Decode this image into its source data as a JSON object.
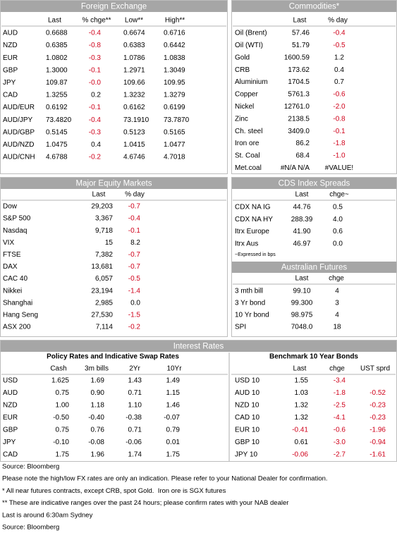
{
  "fx": {
    "title": "Foreign Exchange",
    "columns": [
      "Last",
      "% chge**",
      "Low**",
      "High**"
    ],
    "rows": [
      [
        "AUD",
        "0.6688",
        "-0.4",
        "0.6674",
        "0.6716"
      ],
      [
        "NZD",
        "0.6385",
        "-0.8",
        "0.6383",
        "0.6442"
      ],
      [
        "EUR",
        "1.0802",
        "-0.3",
        "1.0786",
        "1.0838"
      ],
      [
        "GBP",
        "1.3000",
        "-0.1",
        "1.2971",
        "1.3049"
      ],
      [
        "JPY",
        "109.87",
        "-0.0",
        "109.66",
        "109.95"
      ],
      [
        "CAD",
        "1.3255",
        "0.2",
        "1.3232",
        "1.3279"
      ],
      [
        "AUD/EUR",
        "0.6192",
        "-0.1",
        "0.6162",
        "0.6199"
      ],
      [
        "AUD/JPY",
        "73.4820",
        "-0.4",
        "73.1910",
        "73.7870"
      ],
      [
        "AUD/GBP",
        "0.5145",
        "-0.3",
        "0.5123",
        "0.5165"
      ],
      [
        "AUD/NZD",
        "1.0475",
        "0.4",
        "1.0415",
        "1.0477"
      ],
      [
        "AUD/CNH",
        "4.6788",
        "-0.2",
        "4.6746",
        "4.7018"
      ]
    ]
  },
  "commodities": {
    "title": "Commodities*",
    "columns": [
      "Last",
      "% day"
    ],
    "rows": [
      [
        "Oil (Brent)",
        "57.46",
        "-0.4"
      ],
      [
        "Oil (WTI)",
        "51.79",
        "-0.5"
      ],
      [
        "Gold",
        "1600.59",
        "1.2"
      ],
      [
        "CRB",
        "173.62",
        "0.4"
      ],
      [
        "Aluminium",
        "1704.5",
        "0.7"
      ],
      [
        "Copper",
        "5761.3",
        "-0.6"
      ],
      [
        "Nickel",
        "12761.0",
        "-2.0"
      ],
      [
        "Zinc",
        "2138.5",
        "-0.8"
      ],
      [
        "Ch. steel",
        "3409.0",
        "-0.1"
      ],
      [
        "Iron ore",
        "86.2",
        "-1.8"
      ],
      [
        "St. Coal",
        "68.4",
        "-1.0"
      ],
      [
        "Met.coal",
        "#N/A N/A",
        "#VALUE!"
      ]
    ]
  },
  "equity": {
    "title": "Major Equity Markets",
    "columns": [
      "Last",
      "% day"
    ],
    "rows": [
      [
        "Dow",
        "29,203",
        "-0.7"
      ],
      [
        "S&P 500",
        "3,367",
        "-0.4"
      ],
      [
        "Nasdaq",
        "9,718",
        "-0.1"
      ],
      [
        "VIX",
        "15",
        "8.2"
      ],
      [
        "FTSE",
        "7,382",
        "-0.7"
      ],
      [
        "DAX",
        "13,681",
        "-0.7"
      ],
      [
        "CAC 40",
        "6,057",
        "-0.5"
      ],
      [
        "Nikkei",
        "23,194",
        "-1.4"
      ],
      [
        "Shanghai",
        "2,985",
        "0.0"
      ],
      [
        "Hang Seng",
        "27,530",
        "-1.5"
      ],
      [
        "ASX 200",
        "7,114",
        "-0.2"
      ]
    ]
  },
  "cds": {
    "title": "CDS Index Spreads",
    "columns": [
      "Last",
      "chge~"
    ],
    "rows": [
      [
        "CDX NA IG",
        "44.76",
        "0.5"
      ],
      [
        "CDX NA HY",
        "288.39",
        "4.0"
      ],
      [
        "Itrx Europe",
        "41.90",
        "0.6"
      ],
      [
        "Itrx Aus",
        "46.97",
        "0.0"
      ]
    ],
    "note": "~Expressed in bps"
  },
  "futures": {
    "title": "Australian Futures",
    "columns": [
      "Last",
      "chge"
    ],
    "rows": [
      [
        "3 mth bill",
        "99.10",
        "4"
      ],
      [
        "3 Yr bond",
        "99.300",
        "3"
      ],
      [
        "10 Yr bond",
        "98.975",
        "4"
      ],
      [
        "SPI",
        "7048.0",
        "18"
      ]
    ]
  },
  "interest_rates": {
    "title": "Interest Rates",
    "policy": {
      "title": "Policy Rates and Indicative Swap Rates",
      "columns": [
        "Cash",
        "3m bills",
        "2Yr",
        "10Yr"
      ],
      "rows": [
        [
          "USD",
          "1.625",
          "1.69",
          "1.43",
          "1.49"
        ],
        [
          "AUD",
          "0.75",
          "0.90",
          "0.71",
          "1.15"
        ],
        [
          "NZD",
          "1.00",
          "1.18",
          "1.10",
          "1.46"
        ],
        [
          "EUR",
          "-0.50",
          "-0.40",
          "-0.38",
          "-0.07"
        ],
        [
          "GBP",
          "0.75",
          "0.76",
          "0.71",
          "0.79"
        ],
        [
          "JPY",
          "-0.10",
          "-0.08",
          "-0.06",
          "0.01"
        ],
        [
          "CAD",
          "1.75",
          "1.96",
          "1.74",
          "1.75"
        ]
      ]
    },
    "bonds": {
      "title": "Benchmark 10 Year Bonds",
      "columns": [
        "Last",
        "chge",
        "UST sprd"
      ],
      "rows": [
        [
          "USD 10",
          "1.55",
          "-3.4"
        ],
        [
          "AUD 10",
          "1.03",
          "-1.8",
          "-0.52"
        ],
        [
          "NZD 10",
          "1.32",
          "-2.5",
          "-0.23"
        ],
        [
          "CAD 10",
          "1.32",
          "-4.1",
          "-0.23"
        ],
        [
          "EUR 10",
          "-0.41",
          "-0.6",
          "-1.96"
        ],
        [
          "GBP 10",
          "0.61",
          "-3.0",
          "-0.94"
        ],
        [
          "JPY 10",
          "-0.06",
          "-2.7",
          "-1.61"
        ]
      ]
    }
  },
  "footnotes": [
    "Source: Bloomberg",
    "Please note the high/low FX rates are only an indication. Please refer to your National Dealer for confirmation.",
    "* All near futures contracts, except CRB, spot Gold.  Iron ore is SGX futures",
    "** These are indicative ranges over the past 24 hours; please confirm rates with your NAB dealer",
    "Last is around 6:30am Sydney",
    "Source: Bloomberg"
  ]
}
